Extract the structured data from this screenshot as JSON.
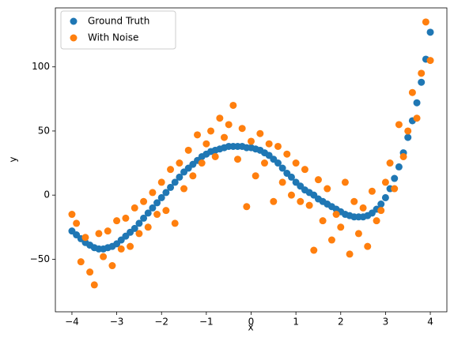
{
  "chart_data": {
    "type": "scatter",
    "x": [
      -4.0,
      -3.9,
      -3.8,
      -3.7,
      -3.6,
      -3.5,
      -3.4,
      -3.3,
      -3.2,
      -3.1,
      -3.0,
      -2.9,
      -2.8,
      -2.7,
      -2.6,
      -2.5,
      -2.4,
      -2.3,
      -2.2,
      -2.1,
      -2.0,
      -1.9,
      -1.8,
      -1.7,
      -1.6,
      -1.5,
      -1.4,
      -1.3,
      -1.2,
      -1.1,
      -1.0,
      -0.9,
      -0.8,
      -0.7,
      -0.6,
      -0.5,
      -0.4,
      -0.3,
      -0.2,
      -0.1,
      0.0,
      0.1,
      0.2,
      0.3,
      0.4,
      0.5,
      0.6,
      0.7,
      0.8,
      0.9,
      1.0,
      1.1,
      1.2,
      1.3,
      1.4,
      1.5,
      1.6,
      1.7,
      1.8,
      1.9,
      2.0,
      2.1,
      2.2,
      2.3,
      2.4,
      2.5,
      2.6,
      2.7,
      2.8,
      2.9,
      3.0,
      3.1,
      3.2,
      3.3,
      3.4,
      3.5,
      3.6,
      3.7,
      3.8,
      3.9,
      4.0
    ],
    "series": [
      {
        "name": "Ground Truth",
        "color": "#1f77b4",
        "values": [
          -28,
          -31,
          -34,
          -37,
          -39,
          -41,
          -42,
          -42,
          -41,
          -40,
          -38,
          -35,
          -32,
          -29,
          -26,
          -22,
          -18,
          -14,
          -10,
          -6,
          -2,
          2,
          6,
          10,
          14,
          18,
          21,
          24,
          27,
          30,
          32,
          34,
          35,
          36,
          37,
          38,
          38,
          38,
          38,
          37,
          37,
          36,
          35,
          33,
          31,
          28,
          25,
          21,
          17,
          14,
          10,
          7,
          4,
          2,
          0,
          -3,
          -5,
          -7,
          -9,
          -11,
          -13,
          -15,
          -16,
          -17,
          -17,
          -17,
          -16,
          -14,
          -11,
          -7,
          -2,
          5,
          13,
          22,
          33,
          45,
          58,
          72,
          88,
          106,
          127
        ]
      },
      {
        "name": "With Noise",
        "color": "#ff7f0e",
        "values": [
          -15,
          -22,
          -52,
          -33,
          -60,
          -70,
          -30,
          -48,
          -28,
          -55,
          -20,
          -42,
          -18,
          -40,
          -10,
          -30,
          -5,
          -25,
          2,
          -15,
          10,
          -12,
          20,
          -22,
          25,
          5,
          35,
          15,
          47,
          25,
          40,
          50,
          30,
          60,
          45,
          55,
          70,
          28,
          52,
          -9,
          42,
          15,
          48,
          25,
          40,
          -5,
          38,
          10,
          32,
          0,
          25,
          -5,
          20,
          -8,
          -43,
          12,
          -20,
          5,
          -35,
          -15,
          -25,
          10,
          -46,
          -5,
          -30,
          -10,
          -40,
          3,
          -20,
          -12,
          10,
          25,
          5,
          55,
          30,
          50,
          80,
          60,
          95,
          135,
          105
        ]
      }
    ],
    "xlabel": "x",
    "ylabel": "y",
    "xlim": [
      -4.37,
      4.37
    ],
    "ylim": [
      -91,
      146
    ],
    "xticks": [
      {
        "value": -4,
        "label": "−4"
      },
      {
        "value": -3,
        "label": "−3"
      },
      {
        "value": -2,
        "label": "−2"
      },
      {
        "value": -1,
        "label": "−1"
      },
      0,
      1,
      2,
      3,
      4
    ],
    "yticks": [
      {
        "value": -50,
        "label": "−50"
      },
      0,
      50,
      100
    ],
    "legend": "upper left",
    "grid": false
  }
}
